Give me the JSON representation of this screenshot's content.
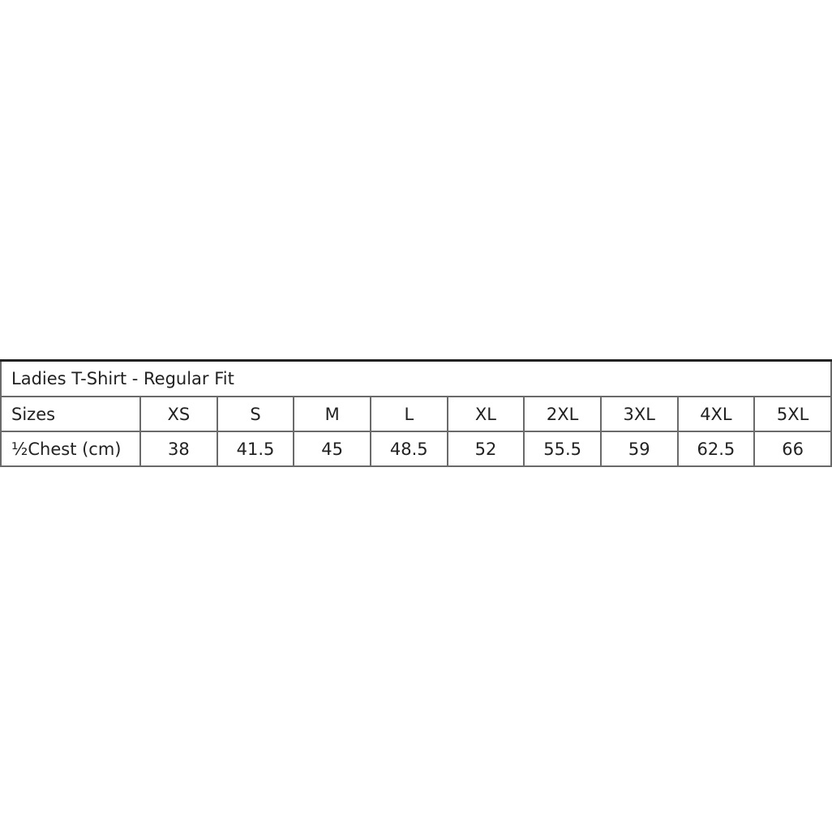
{
  "table": {
    "title": "Ladies T-Shirt - Regular Fit",
    "rows": [
      {
        "label": "Sizes",
        "values": [
          "XS",
          "S",
          "M",
          "L",
          "XL",
          "2XL",
          "3XL",
          "4XL",
          "5XL"
        ]
      },
      {
        "label": "½Chest (cm)",
        "values": [
          "38",
          "41.5",
          "45",
          "48.5",
          "52",
          "55.5",
          "59",
          "62.5",
          "66"
        ]
      }
    ]
  }
}
